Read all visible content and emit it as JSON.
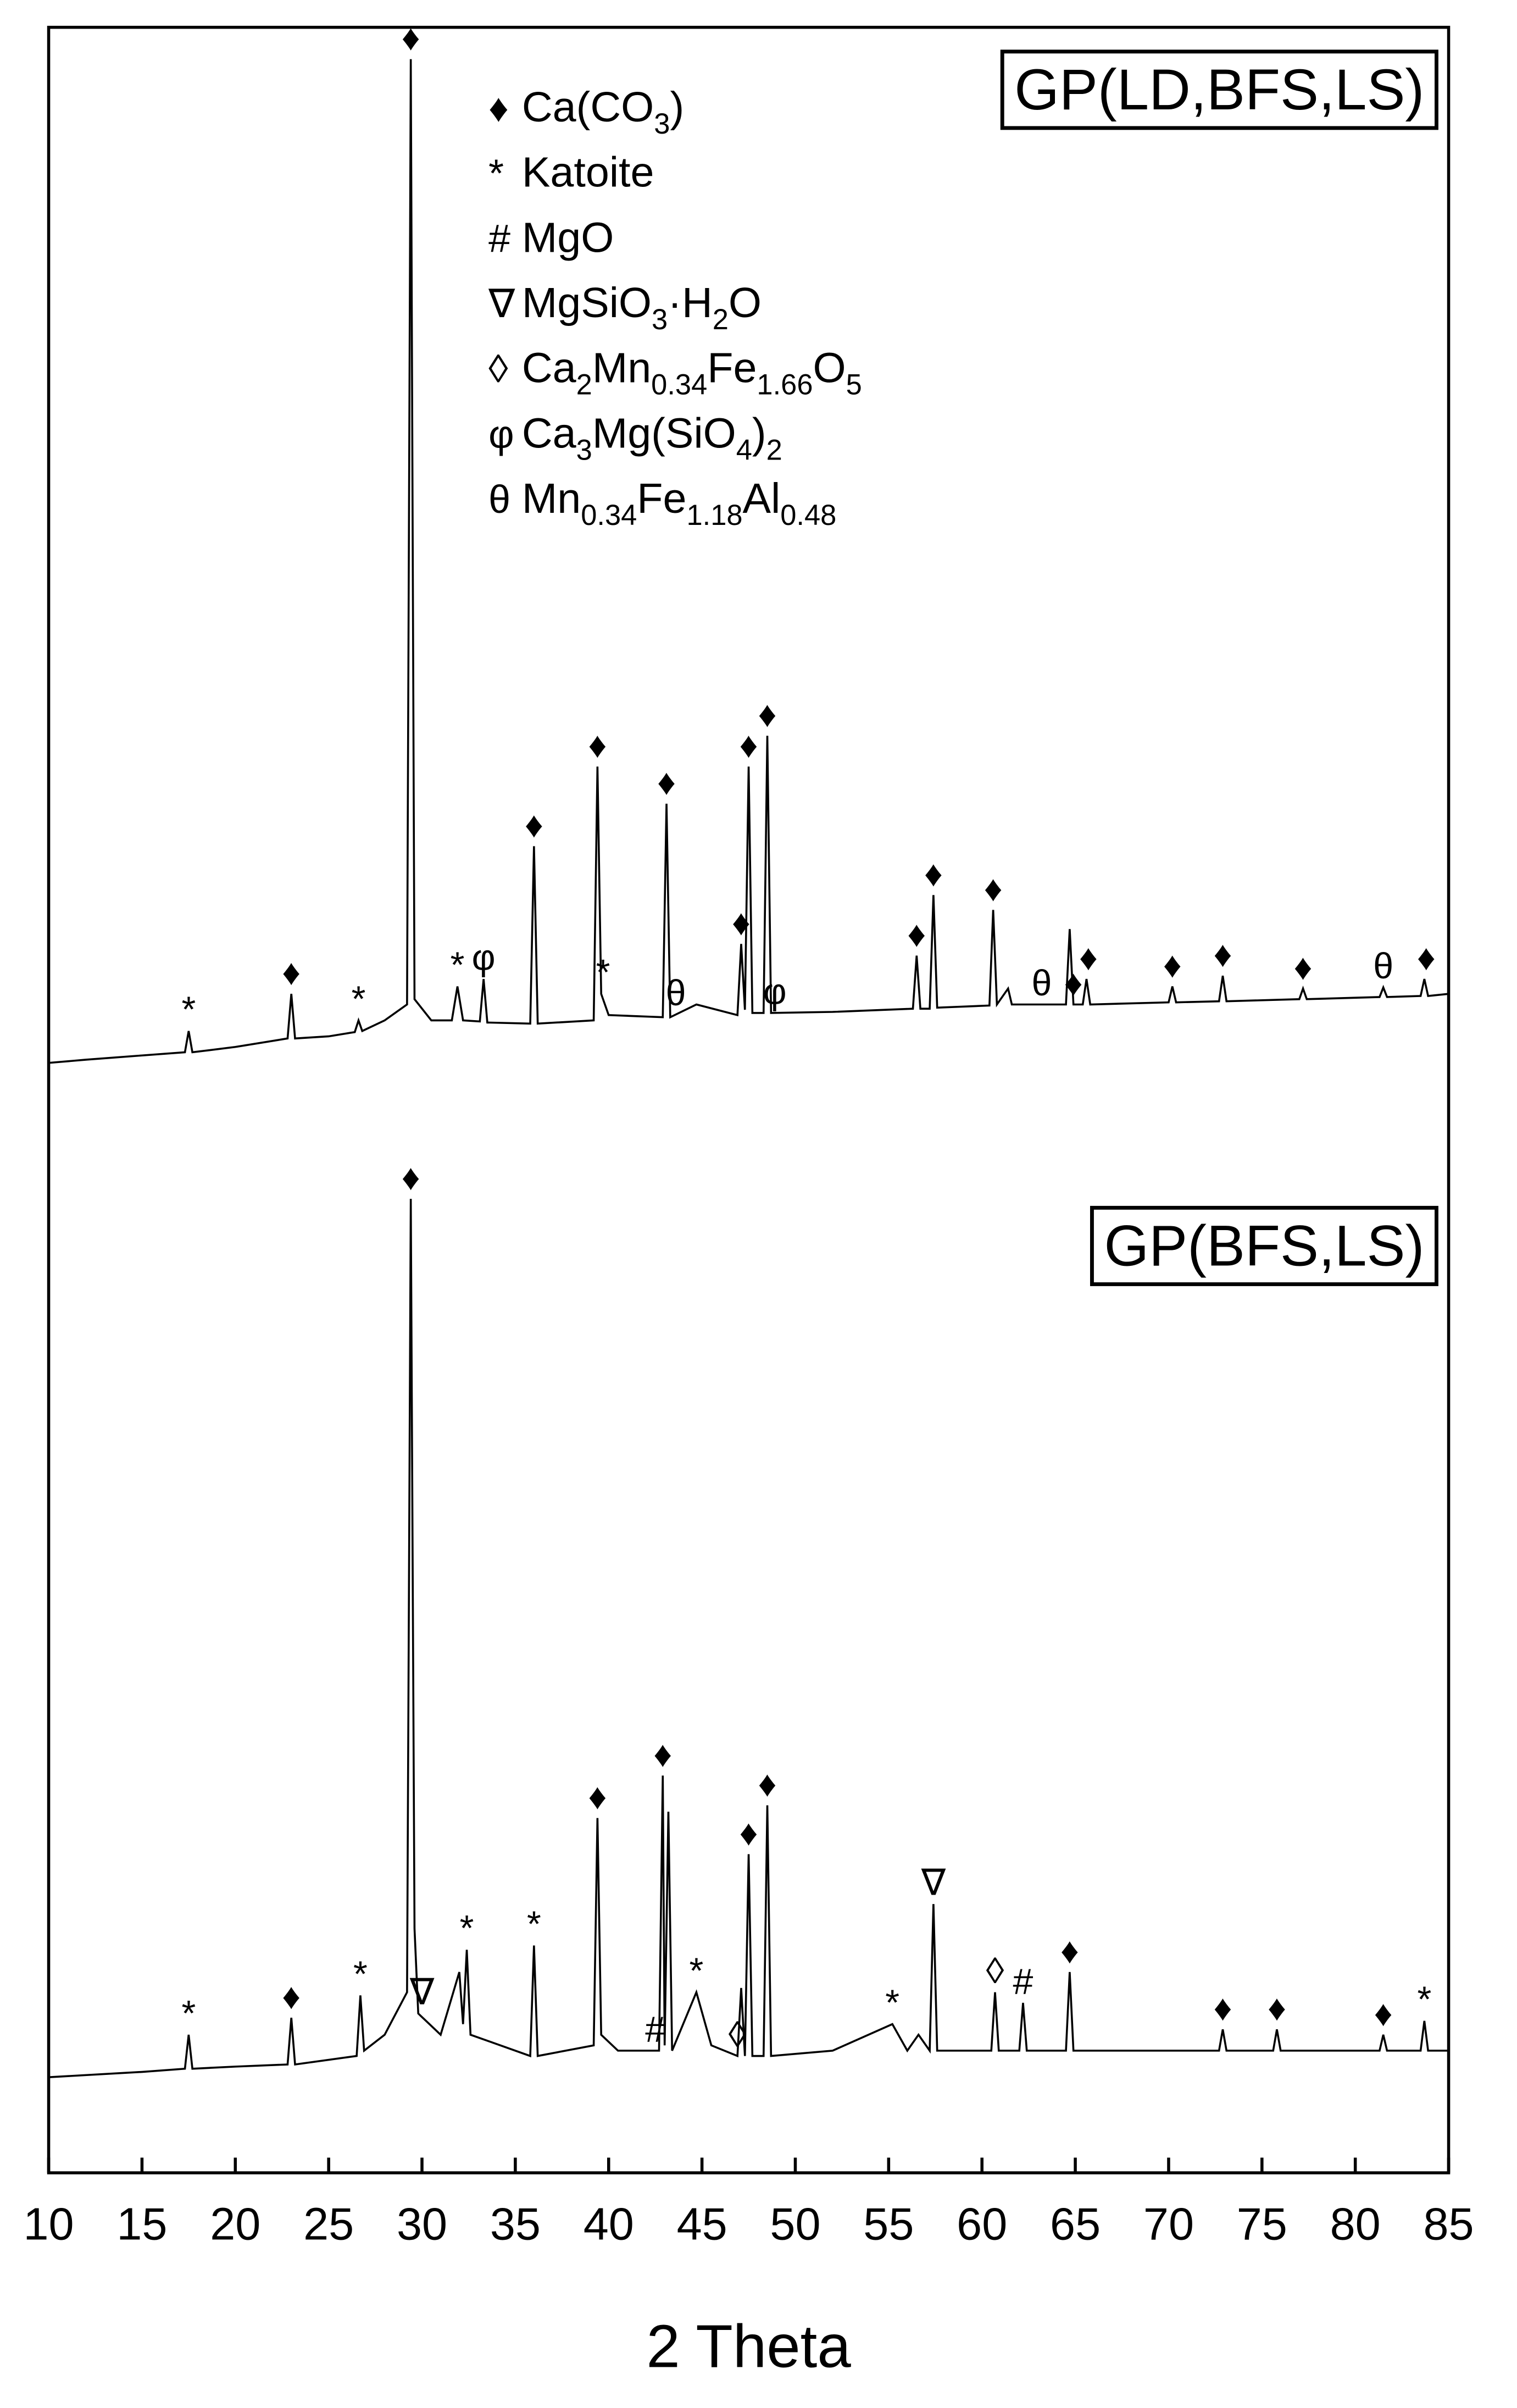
{
  "chart_data": [
    {
      "type": "line",
      "xlim": [
        10,
        85
      ],
      "ylim": [
        0,
        100
      ],
      "legend": [
        {
          "symbol": "♦",
          "label": [
            "Ca(CO",
            "3",
            ")"
          ]
        },
        {
          "symbol": "*",
          "label": [
            "Katoite"
          ]
        },
        {
          "symbol": "#",
          "label": [
            "MgO"
          ]
        },
        {
          "symbol": "∇",
          "label": [
            "MgSiO",
            "3",
            "·H",
            "2",
            "O"
          ]
        },
        {
          "symbol": "◊",
          "label": [
            "Ca",
            "2",
            "Mn",
            "0.34",
            "Fe",
            "1.66",
            "O",
            "5"
          ]
        },
        {
          "symbol": "φ",
          "label": [
            "Ca",
            "3",
            "Mg(SiO",
            "4",
            ")",
            "2"
          ]
        },
        {
          "symbol": "θ",
          "label": [
            "Mn",
            "0.34",
            "Fe",
            "1.18",
            "Al",
            "0.48"
          ]
        }
      ],
      "x": [
        10,
        12,
        15,
        17.3,
        17.5,
        17.7,
        20,
        22.8,
        23.0,
        23.2,
        25,
        26.4,
        26.6,
        26.8,
        28,
        29.2,
        29.4,
        29.6,
        30.5,
        31.6,
        31.9,
        32.2,
        33.1,
        33.3,
        33.5,
        35.8,
        36.0,
        36.2,
        39.2,
        39.4,
        39.6,
        40,
        42.9,
        43.1,
        43.3,
        44.7,
        46.9,
        47.1,
        47.3,
        47.5,
        47.7,
        48.3,
        48.5,
        48.7,
        52,
        56.3,
        56.5,
        56.7,
        57.2,
        57.4,
        57.6,
        60.4,
        60.6,
        60.8,
        61.4,
        61.6,
        64.5,
        64.7,
        64.9,
        65.4,
        65.6,
        65.8,
        70.0,
        70.2,
        70.4,
        72.7,
        72.9,
        73.1,
        77.0,
        77.2,
        77.4,
        81.3,
        81.5,
        81.7,
        83.5,
        83.7,
        83.9,
        85
      ],
      "series": [
        {
          "name": "GP(LD,BFS,LS)",
          "color": "#000000",
          "values": [
            2.5,
            2.8,
            3.2,
            3.5,
            5.5,
            3.5,
            4,
            4.8,
            9,
            4.8,
            5,
            5.4,
            6.5,
            5.5,
            6.5,
            8,
            97,
            8.5,
            6.5,
            6.5,
            9.7,
            6.5,
            6.4,
            10.4,
            6.3,
            6.2,
            22.9,
            6.2,
            6.5,
            30.4,
            9,
            7,
            6.8,
            26.9,
            6.8,
            8,
            7,
            13.7,
            7.5,
            30.4,
            7.2,
            7.2,
            33.3,
            7.2,
            7.3,
            7.6,
            12.6,
            7.6,
            7.6,
            18.3,
            7.7,
            7.9,
            16.9,
            8,
            9.5,
            8,
            8,
            15.1,
            8,
            8,
            10.4,
            8,
            8.2,
            9.7,
            8.2,
            8.3,
            10.7,
            8.3,
            8.5,
            9.5,
            8.5,
            8.7,
            9.6,
            8.7,
            8.8,
            10.4,
            8.8,
            9
          ]
        }
      ],
      "annotations": [
        {
          "x": 17.5,
          "label": "*"
        },
        {
          "x": 23.0,
          "label": "♦"
        },
        {
          "x": 26.6,
          "label": "*"
        },
        {
          "x": 29.4,
          "label": "♦"
        },
        {
          "x": 31.9,
          "label": "*"
        },
        {
          "x": 33.3,
          "label": "φ"
        },
        {
          "x": 36.0,
          "label": "♦"
        },
        {
          "x": 39.4,
          "label": "♦"
        },
        {
          "x": 39.7,
          "label": "*"
        },
        {
          "x": 43.1,
          "label": "♦"
        },
        {
          "x": 43.6,
          "label": "θ"
        },
        {
          "x": 47.1,
          "label": "♦"
        },
        {
          "x": 47.5,
          "label": "♦"
        },
        {
          "x": 48.5,
          "label": "♦"
        },
        {
          "x": 48.9,
          "label": "φ"
        },
        {
          "x": 56.5,
          "label": "♦"
        },
        {
          "x": 57.4,
          "label": "♦"
        },
        {
          "x": 60.6,
          "label": "♦"
        },
        {
          "x": 63.2,
          "label": "θ"
        },
        {
          "x": 64.9,
          "label": "♦"
        },
        {
          "x": 65.7,
          "label": "♦"
        },
        {
          "x": 70.2,
          "label": "♦"
        },
        {
          "x": 72.9,
          "label": "♦"
        },
        {
          "x": 77.2,
          "label": "♦"
        },
        {
          "x": 81.5,
          "label": "θ"
        },
        {
          "x": 83.8,
          "label": "♦"
        }
      ]
    },
    {
      "type": "line",
      "xlim": [
        10,
        85
      ],
      "ylim": [
        0,
        100
      ],
      "xticks": [
        10,
        15,
        20,
        25,
        30,
        35,
        40,
        45,
        50,
        55,
        60,
        65,
        70,
        75,
        80,
        85
      ],
      "xlabel": "2 Theta",
      "x": [
        10,
        15,
        17.3,
        17.5,
        17.7,
        20,
        22.8,
        23.0,
        23.2,
        26.5,
        26.7,
        26.9,
        28,
        29.2,
        29.4,
        29.6,
        29.8,
        31,
        32.0,
        32.2,
        32.4,
        32.6,
        35.8,
        36.0,
        36.2,
        39.2,
        39.4,
        39.6,
        40.5,
        42.7,
        42.9,
        43.0,
        43.2,
        43.4,
        44.7,
        45.5,
        46.9,
        47.1,
        47.3,
        47.5,
        47.7,
        48.3,
        48.5,
        48.7,
        52,
        55.2,
        56.0,
        56.6,
        57.2,
        57.4,
        57.6,
        60.5,
        60.7,
        60.9,
        62.0,
        62.2,
        62.4,
        64.5,
        64.7,
        64.9,
        72.7,
        72.9,
        73.1,
        75.6,
        75.8,
        76,
        81.3,
        81.5,
        81.7,
        83.5,
        83.7,
        83.9,
        85
      ],
      "series": [
        {
          "name": "GP(BFS,LS)",
          "color": "#000000",
          "values": [
            9,
            9.5,
            9.8,
            13,
            9.8,
            10,
            10.2,
            14.6,
            10.2,
            11,
            16.7,
            11.5,
            13,
            17,
            91.7,
            23,
            15,
            13,
            18.9,
            14,
            21,
            13,
            11,
            21.4,
            11,
            12,
            33.4,
            13,
            11.5,
            11.5,
            37.4,
            12,
            34,
            11.5,
            17,
            12,
            11,
            17.4,
            11,
            30,
            11,
            11,
            34.6,
            11,
            11.5,
            14,
            11.5,
            13,
            11.5,
            25.3,
            11.5,
            11.5,
            17,
            11.5,
            11.5,
            16,
            11.5,
            11.5,
            18.9,
            11.5,
            11.5,
            13.5,
            11.5,
            11.5,
            13.5,
            11.5,
            11.5,
            13,
            11.5,
            11.5,
            14.3,
            11.5,
            11.5
          ]
        }
      ],
      "annotations": [
        {
          "x": 17.5,
          "label": "*"
        },
        {
          "x": 23.0,
          "label": "♦"
        },
        {
          "x": 26.7,
          "label": "*"
        },
        {
          "x": 29.4,
          "label": "♦"
        },
        {
          "x": 30.0,
          "label": "∇"
        },
        {
          "x": 32.4,
          "label": "*"
        },
        {
          "x": 36.0,
          "label": "*"
        },
        {
          "x": 39.4,
          "label": "♦"
        },
        {
          "x": 42.5,
          "label": "#"
        },
        {
          "x": 42.9,
          "label": "♦"
        },
        {
          "x": 44.7,
          "label": "*"
        },
        {
          "x": 46.9,
          "label": "◊"
        },
        {
          "x": 47.5,
          "label": "♦"
        },
        {
          "x": 48.5,
          "label": "♦"
        },
        {
          "x": 55.2,
          "label": "*"
        },
        {
          "x": 57.4,
          "label": "∇"
        },
        {
          "x": 60.7,
          "label": "◊"
        },
        {
          "x": 62.2,
          "label": "#"
        },
        {
          "x": 64.7,
          "label": "♦"
        },
        {
          "x": 72.9,
          "label": "♦"
        },
        {
          "x": 75.8,
          "label": "♦"
        },
        {
          "x": 81.5,
          "label": "♦"
        },
        {
          "x": 83.7,
          "label": "*"
        }
      ]
    }
  ]
}
